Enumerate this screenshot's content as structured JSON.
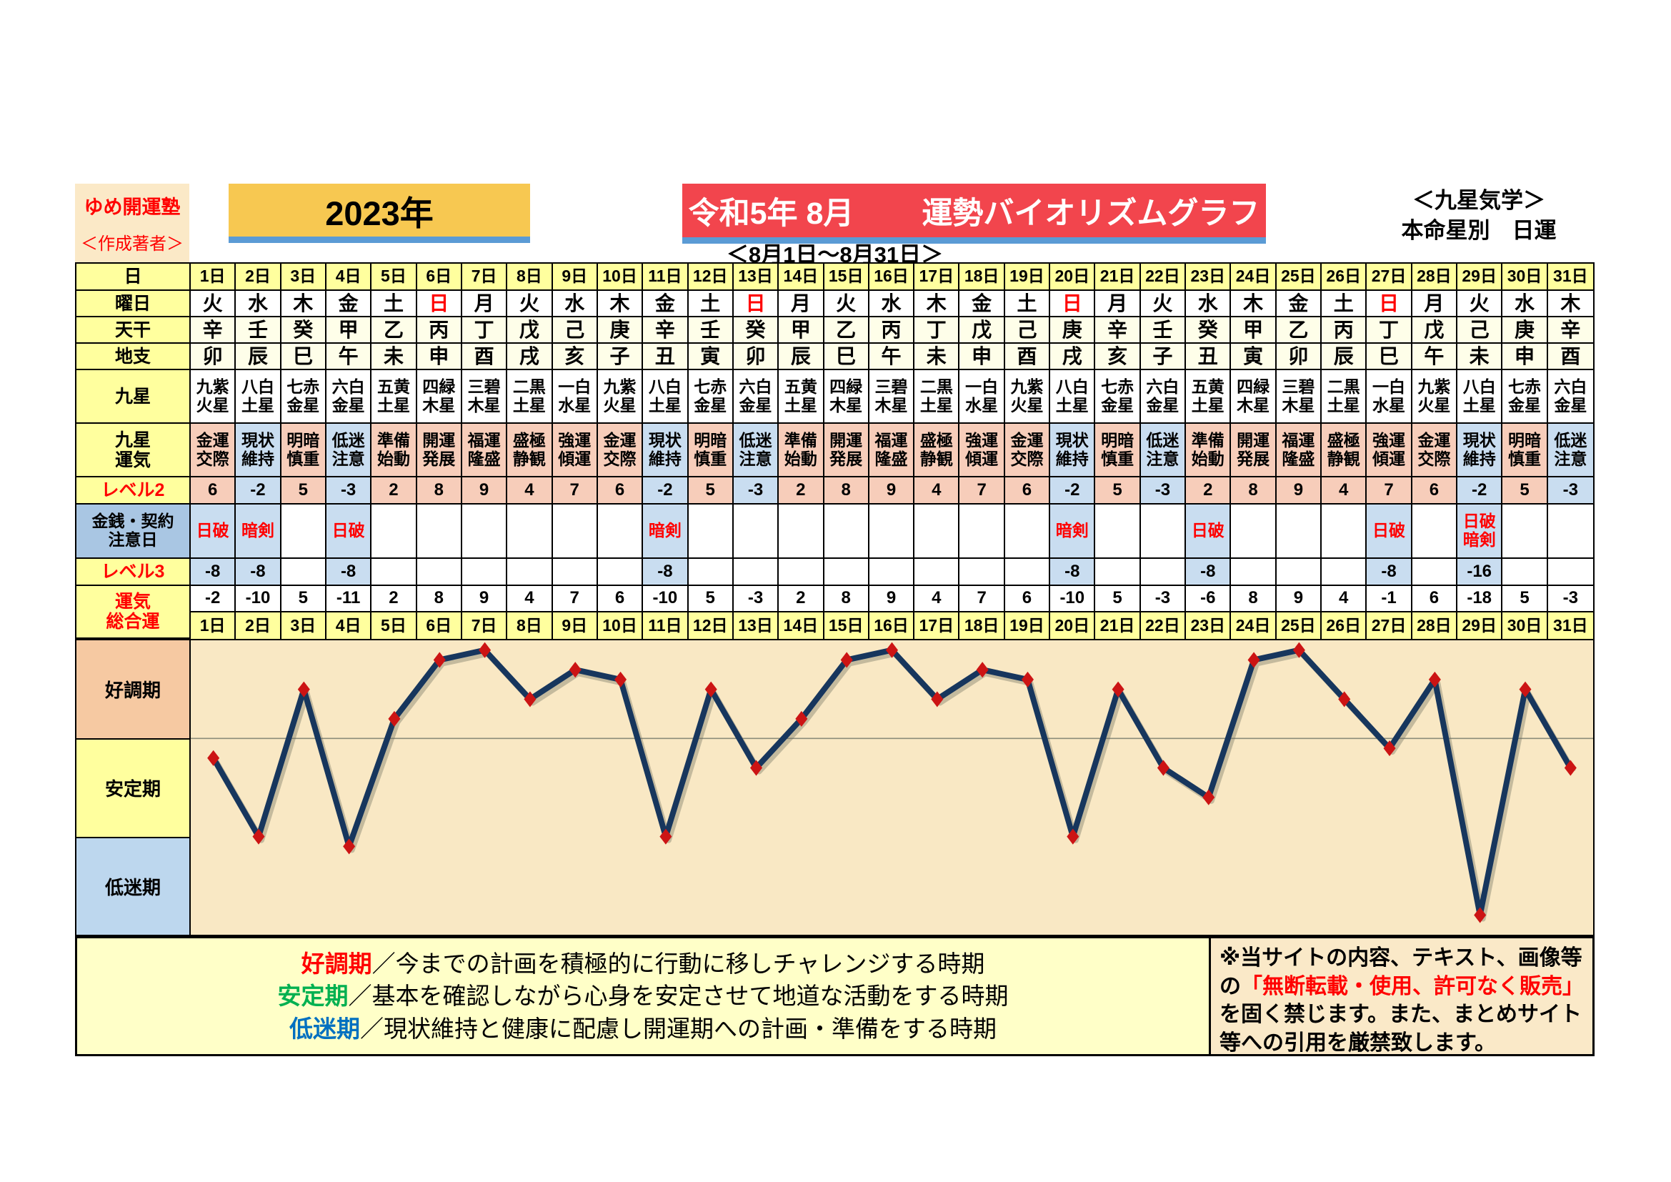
{
  "header": {
    "site": "ゆめ開運塾",
    "author": "＜作成著者＞",
    "year": "2023年",
    "title_left": "令和5年 8月",
    "title_right": "運勢バイオリズムグラフ",
    "school": "＜九星気学＞",
    "school_sub": "本命星別　日運",
    "period": "＜8月1日～8月31日＞"
  },
  "table": {
    "row_headers": {
      "day": "日",
      "youbi": "曜日",
      "tenkan": "天干",
      "chishi": "地支",
      "kyusei": "九星",
      "unki": [
        "九星",
        "運気"
      ],
      "level2": "レベル2",
      "caution": [
        "金銭・契約",
        "注意日"
      ],
      "level3": "レベル3",
      "total": [
        "運気",
        "総合運"
      ]
    },
    "days": [
      "1日",
      "2日",
      "3日",
      "4日",
      "5日",
      "6日",
      "7日",
      "8日",
      "9日",
      "10日",
      "11日",
      "12日",
      "13日",
      "14日",
      "15日",
      "16日",
      "17日",
      "18日",
      "19日",
      "20日",
      "21日",
      "22日",
      "23日",
      "24日",
      "25日",
      "26日",
      "27日",
      "28日",
      "29日",
      "30日",
      "31日"
    ],
    "youbi": [
      "火",
      "水",
      "木",
      "金",
      "土",
      "日",
      "月",
      "火",
      "水",
      "木",
      "金",
      "土",
      "日",
      "月",
      "火",
      "水",
      "木",
      "金",
      "土",
      "日",
      "月",
      "火",
      "水",
      "木",
      "金",
      "土",
      "日",
      "月",
      "火",
      "水",
      "木"
    ],
    "sunday_mark": "日",
    "tenkan": [
      "辛",
      "壬",
      "癸",
      "甲",
      "乙",
      "丙",
      "丁",
      "戊",
      "己",
      "庚",
      "辛",
      "壬",
      "癸",
      "甲",
      "乙",
      "丙",
      "丁",
      "戊",
      "己",
      "庚",
      "辛",
      "壬",
      "癸",
      "甲",
      "乙",
      "丙",
      "丁",
      "戊",
      "己",
      "庚",
      "辛"
    ],
    "chishi": [
      "卯",
      "辰",
      "巳",
      "午",
      "未",
      "申",
      "酉",
      "戌",
      "亥",
      "子",
      "丑",
      "寅",
      "卯",
      "辰",
      "巳",
      "午",
      "未",
      "申",
      "酉",
      "戌",
      "亥",
      "子",
      "丑",
      "寅",
      "卯",
      "辰",
      "巳",
      "午",
      "未",
      "申",
      "酉"
    ],
    "kyusei": [
      "九紫火星",
      "八白土星",
      "七赤金星",
      "六白金星",
      "五黄土星",
      "四緑木星",
      "三碧木星",
      "二黒土星",
      "一白水星",
      "九紫火星",
      "八白土星",
      "七赤金星",
      "六白金星",
      "五黄土星",
      "四緑木星",
      "三碧木星",
      "二黒土星",
      "一白水星",
      "九紫火星",
      "八白土星",
      "七赤金星",
      "六白金星",
      "五黄土星",
      "四緑木星",
      "三碧木星",
      "二黒土星",
      "一白水星",
      "九紫火星",
      "八白土星",
      "七赤金星",
      "六白金星"
    ],
    "unki": [
      "金運交際",
      "現状維持",
      "明暗慎重",
      "低迷注意",
      "準備始動",
      "開運発展",
      "福運隆盛",
      "盛極静観",
      "強運傾運",
      "金運交際",
      "現状維持",
      "明暗慎重",
      "低迷注意",
      "準備始動",
      "開運発展",
      "福運隆盛",
      "盛極静観",
      "強運傾運",
      "金運交際",
      "現状維持",
      "明暗慎重",
      "低迷注意",
      "準備始動",
      "開運発展",
      "福運隆盛",
      "盛極静観",
      "強運傾運",
      "金運交際",
      "現状維持",
      "明暗慎重",
      "低迷注意"
    ],
    "level2": [
      6,
      -2,
      5,
      -3,
      2,
      8,
      9,
      4,
      7,
      6,
      -2,
      5,
      -3,
      2,
      8,
      9,
      4,
      7,
      6,
      -2,
      5,
      -3,
      2,
      8,
      9,
      4,
      7,
      6,
      -2,
      5,
      -3
    ],
    "caution": [
      "日破",
      "暗剣",
      "",
      "日破",
      "",
      "",
      "",
      "",
      "",
      "",
      "暗剣",
      "",
      "",
      "",
      "",
      "",
      "",
      "",
      "",
      "暗剣",
      "",
      "",
      "日破",
      "",
      "",
      "",
      "日破",
      "",
      "日破暗剣",
      "",
      ""
    ],
    "level3": [
      "-8",
      "-8",
      "",
      "-8",
      "",
      "",
      "",
      "",
      "",
      "",
      "-8",
      "",
      "",
      "",
      "",
      "",
      "",
      "",
      "",
      "-8",
      "",
      "",
      "-8",
      "",
      "",
      "",
      "-8",
      "",
      "-16",
      "",
      ""
    ]
  },
  "chart_data": {
    "type": "line",
    "title": "運勢バイオリズムグラフ 令和5年8月 運気総合運",
    "categories": [
      "1日",
      "2日",
      "3日",
      "4日",
      "5日",
      "6日",
      "7日",
      "8日",
      "9日",
      "10日",
      "11日",
      "12日",
      "13日",
      "14日",
      "15日",
      "16日",
      "17日",
      "18日",
      "19日",
      "20日",
      "21日",
      "22日",
      "23日",
      "24日",
      "25日",
      "26日",
      "27日",
      "28日",
      "29日",
      "30日",
      "31日"
    ],
    "values": [
      -2,
      -10,
      5,
      -11,
      2,
      8,
      9,
      4,
      7,
      6,
      -10,
      5,
      -3,
      2,
      8,
      9,
      4,
      7,
      6,
      -10,
      5,
      -3,
      -6,
      8,
      9,
      4,
      -1,
      6,
      -18,
      5,
      -3
    ],
    "xlabel": "日",
    "ylabel": "運気総合運",
    "ylim": [
      -20,
      10
    ],
    "zero_line": 0,
    "band_boundaries": [
      0,
      -10
    ],
    "bands": [
      {
        "label": "好調期",
        "color": "#F6C9A2"
      },
      {
        "label": "安定期",
        "color": "#FFFF9E"
      },
      {
        "label": "低迷期",
        "color": "#BDD7EE"
      }
    ],
    "grid": "zero-line-only",
    "legend_position": "none",
    "line_color": "#17365D",
    "marker_color": "#CC1414",
    "plot_bg": "#F9E8C4"
  },
  "legend": {
    "items": [
      {
        "term": "好調期",
        "color": "#FF0000",
        "desc": "／今までの計画を積極的に行動に移しチャレンジする時期"
      },
      {
        "term": "安定期",
        "color": "#00B050",
        "desc": "／基本を確認しながら心身を安定させて地道な活動をする時期"
      },
      {
        "term": "低迷期",
        "color": "#0070C0",
        "desc": "／現状維持と健康に配慮し開運期への計画・準備をする時期"
      }
    ]
  },
  "notice": {
    "segments": [
      {
        "text": "※当サイトの内容、テキスト、画像等の",
        "red": false
      },
      {
        "text": "「無断転載・使用、許可なく販売」",
        "red": true
      },
      {
        "text": "を固く禁じます。また、まとめサイト等への引用を厳禁致します。",
        "red": false
      }
    ]
  },
  "colors": {
    "yellow_cell": "#FFFF9E",
    "ivory_cell": "#FEFEE9",
    "pink_cell": "#F7CDBA",
    "blue_cell": "#C9DDF0",
    "caution_header": "#A9C6E3",
    "brand_bg": "#FBE9C7",
    "year_bg": "#F7C851",
    "title_bg": "#F2454D",
    "underline_blue": "#5B9BD5",
    "red_text": "#FF0000",
    "sunday_red": "#FF0000"
  }
}
